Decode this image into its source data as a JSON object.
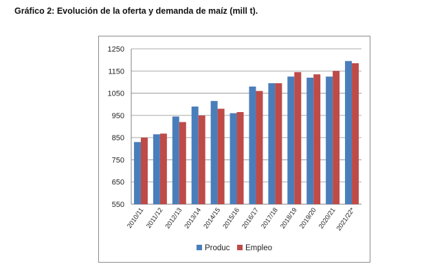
{
  "title": "Gráfico 2: Evolución de la oferta y demanda de maíz (mill t).",
  "colors": {
    "produc": "#4a7ebb",
    "empleo": "#be4b48"
  },
  "chart_data": {
    "type": "bar",
    "categories": [
      "2010/11",
      "2011/12",
      "2012/13",
      "2013/14",
      "2014/15",
      "2015/16",
      "2016/17",
      "2017/18",
      "2018/19",
      "2019/20",
      "2020/21",
      "2021/22*"
    ],
    "series": [
      {
        "name": "Produc",
        "values": [
          830,
          865,
          945,
          990,
          1015,
          960,
          1080,
          1095,
          1125,
          1120,
          1125,
          1195
        ]
      },
      {
        "name": "Empleo",
        "values": [
          850,
          868,
          920,
          950,
          980,
          965,
          1060,
          1095,
          1145,
          1135,
          1150,
          1185
        ]
      }
    ],
    "ylim": [
      550,
      1250
    ],
    "yticks": [
      550,
      650,
      750,
      850,
      950,
      1050,
      1150,
      1250
    ],
    "grid": true,
    "legend": "bottom"
  }
}
